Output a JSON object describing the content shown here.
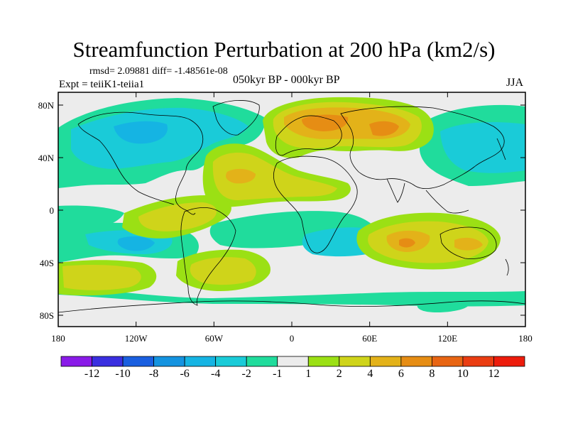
{
  "title": "Streamfunction Perturbation at 200 hPa (km2/s)",
  "stats_line": "rmsd= 2.09881 diff= -1.48561e-08",
  "experiment": "Expt = teiiK1-teiia1",
  "period": "050kyr BP - 000kyr BP",
  "season": "JJA",
  "lat_ticks": [
    "80N",
    "40N",
    "0",
    "40S",
    "80S"
  ],
  "lon_ticks": [
    "180",
    "120W",
    "60W",
    "0",
    "60E",
    "120E",
    "180"
  ],
  "colorbar": {
    "labels": [
      "-12",
      "-10",
      "-8",
      "-6",
      "-4",
      "-2",
      "-1",
      "1",
      "2",
      "4",
      "6",
      "8",
      "10",
      "12"
    ],
    "colors": [
      "#8a1be8",
      "#3a2fe0",
      "#1a5fe0",
      "#1493e0",
      "#15b4e3",
      "#1acbd8",
      "#20dc9c",
      "#ececec",
      "#9be014",
      "#cfd41a",
      "#e3b219",
      "#e68d14",
      "#e86513",
      "#ea3d12",
      "#ed1c0c"
    ]
  }
}
